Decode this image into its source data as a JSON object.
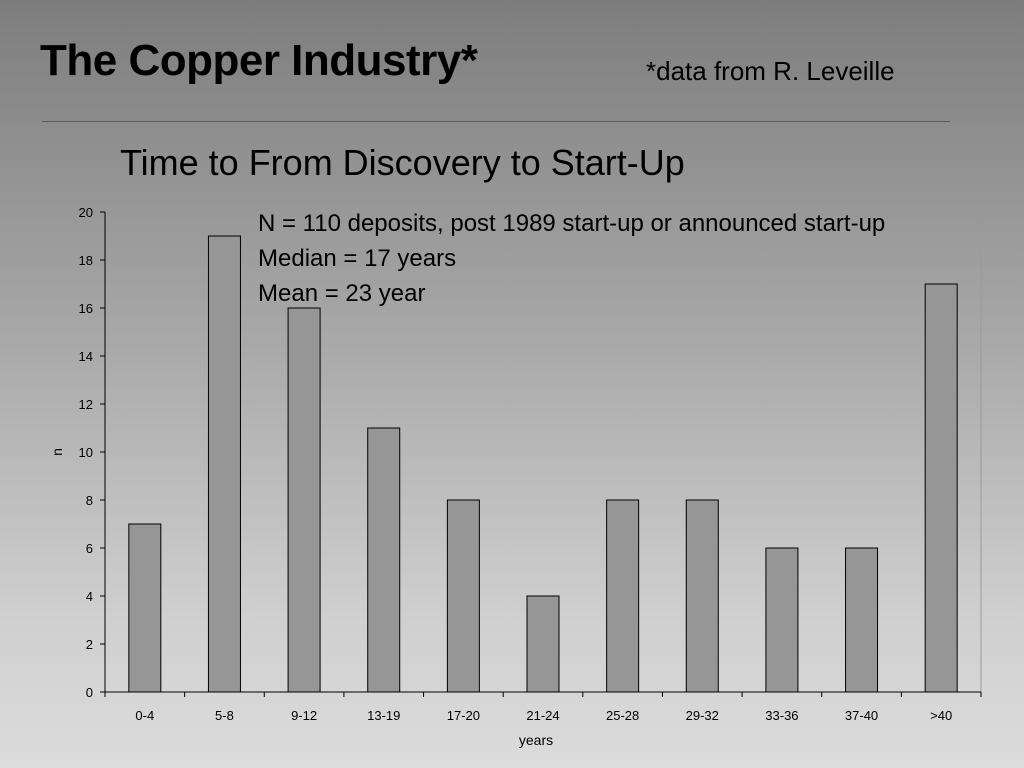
{
  "slide": {
    "title": "The Copper Industry*",
    "source_note": "*data from R. Leveille"
  },
  "stats": {
    "line1": "N = 110 deposits, post 1989 start-up or announced start-up",
    "line2": "Median = 17 years",
    "line3": "Mean = 23 year"
  },
  "chart_data": {
    "type": "bar",
    "title": "Time to From Discovery to Start-Up",
    "categories": [
      "0-4",
      "5-8",
      "9-12",
      "13-19",
      "17-20",
      "21-24",
      "25-28",
      "29-32",
      "33-36",
      "37-40",
      ">40"
    ],
    "values": [
      7,
      19,
      16,
      11,
      8,
      4,
      8,
      8,
      6,
      6,
      17
    ],
    "xlabel": "years",
    "ylabel": "n",
    "ylim": [
      0,
      20
    ],
    "yticks": [
      0,
      2,
      4,
      6,
      8,
      10,
      12,
      14,
      16,
      18,
      20
    ],
    "grid": false,
    "legend": "none",
    "bar_color": "#969696",
    "bar_stroke": "#000000"
  }
}
